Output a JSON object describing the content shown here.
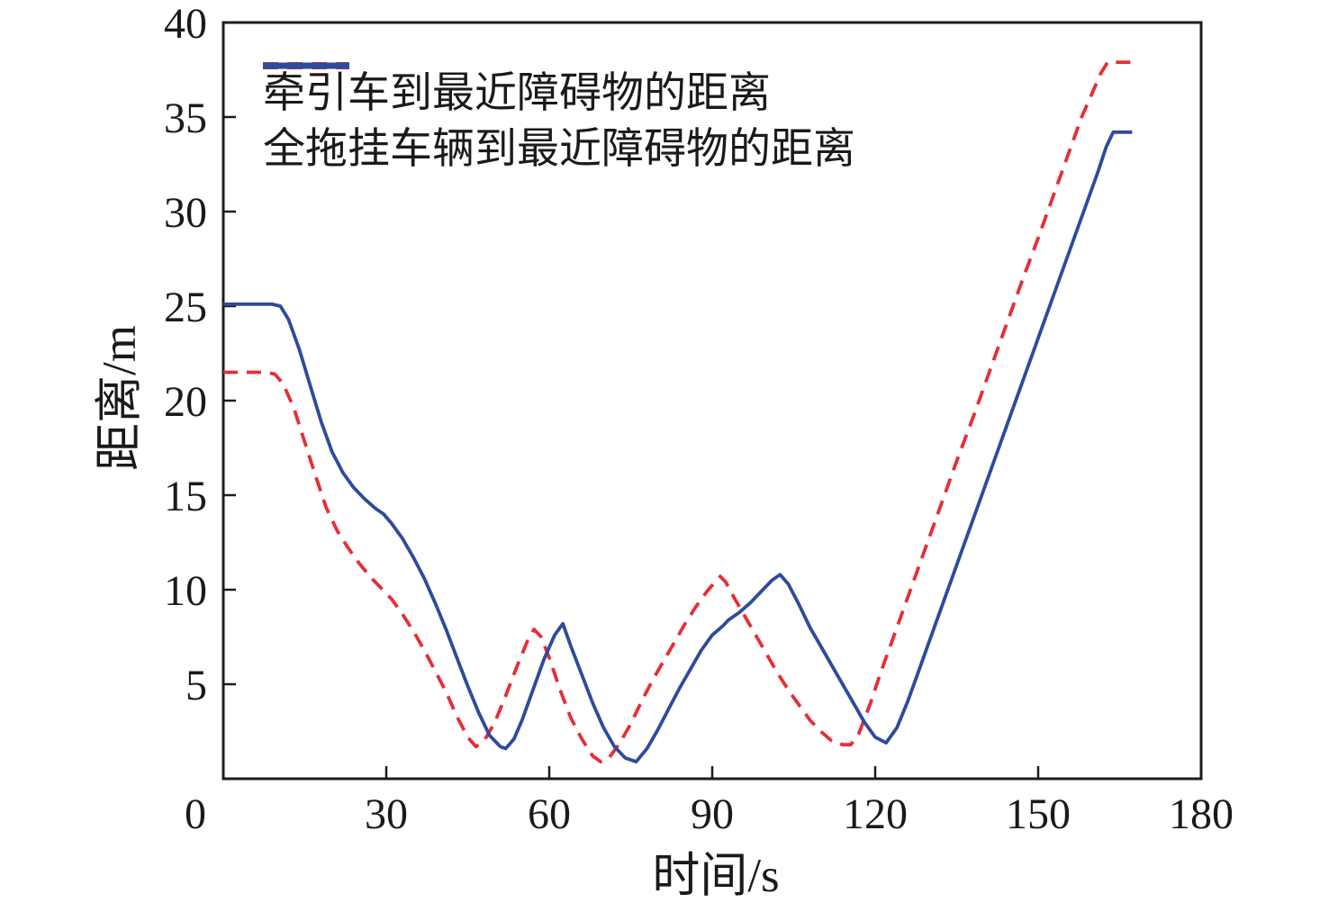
{
  "figure": {
    "background": "#ffffff",
    "axis_color": "#1c1c1c",
    "text_color": "#1a1a1a"
  },
  "chart_data": {
    "type": "line",
    "title": "",
    "xlabel": "时间/s",
    "ylabel": "距离/m",
    "xlim": [
      0,
      180
    ],
    "ylim": [
      0,
      40
    ],
    "xticks": [
      0,
      30,
      60,
      90,
      120,
      150,
      180
    ],
    "yticks": [
      5,
      10,
      15,
      20,
      25,
      30,
      35,
      40
    ],
    "origin_label": "0",
    "grid": false,
    "legend_position": "top-left",
    "legend_frame": false,
    "series": [
      {
        "name": "牵引车到最近障碍物的距离",
        "color": "#e62e35",
        "style": "dashed",
        "points": [
          [
            0,
            21.5
          ],
          [
            8,
            21.5
          ],
          [
            9.5,
            21.4
          ],
          [
            11,
            20.9
          ],
          [
            13,
            19.6
          ],
          [
            15,
            17.8
          ],
          [
            17,
            16.0
          ],
          [
            19,
            14.3
          ],
          [
            21,
            13.1
          ],
          [
            23,
            12.2
          ],
          [
            25,
            11.4
          ],
          [
            27,
            10.7
          ],
          [
            29,
            10.1
          ],
          [
            31,
            9.5
          ],
          [
            33,
            8.7
          ],
          [
            35,
            7.8
          ],
          [
            37,
            6.8
          ],
          [
            39,
            5.7
          ],
          [
            41,
            4.6
          ],
          [
            43,
            3.3
          ],
          [
            45,
            2.2
          ],
          [
            46.5,
            1.7
          ],
          [
            48,
            2.0
          ],
          [
            50,
            3.0
          ],
          [
            52,
            4.4
          ],
          [
            54,
            5.9
          ],
          [
            56,
            7.3
          ],
          [
            57.2,
            7.9
          ],
          [
            58.5,
            7.5
          ],
          [
            60,
            6.4
          ],
          [
            62,
            4.7
          ],
          [
            64,
            3.2
          ],
          [
            66,
            2.1
          ],
          [
            68,
            1.2
          ],
          [
            69.5,
            0.9
          ],
          [
            71,
            1.1
          ],
          [
            73,
            1.9
          ],
          [
            75,
            2.9
          ],
          [
            77,
            4.1
          ],
          [
            79,
            5.2
          ],
          [
            81,
            6.2
          ],
          [
            83,
            7.2
          ],
          [
            85,
            8.2
          ],
          [
            87,
            9.1
          ],
          [
            89,
            9.9
          ],
          [
            90.5,
            10.4
          ],
          [
            91.5,
            10.7
          ],
          [
            92.5,
            10.4
          ],
          [
            94,
            9.6
          ],
          [
            96,
            8.6
          ],
          [
            98,
            7.6
          ],
          [
            100,
            6.6
          ],
          [
            102,
            5.6
          ],
          [
            104,
            4.7
          ],
          [
            106,
            3.9
          ],
          [
            108,
            3.1
          ],
          [
            110,
            2.5
          ],
          [
            112,
            2.0
          ],
          [
            114,
            1.8
          ],
          [
            115.5,
            1.8
          ],
          [
            117,
            2.4
          ],
          [
            119,
            3.9
          ],
          [
            121,
            5.6
          ],
          [
            123,
            7.2
          ],
          [
            126,
            9.6
          ],
          [
            129,
            12.0
          ],
          [
            132,
            14.4
          ],
          [
            135,
            16.8
          ],
          [
            138,
            19.1
          ],
          [
            141,
            21.5
          ],
          [
            144,
            23.9
          ],
          [
            147,
            26.3
          ],
          [
            150,
            28.6
          ],
          [
            153,
            31.0
          ],
          [
            156,
            33.4
          ],
          [
            158,
            35.0
          ],
          [
            160,
            36.3
          ],
          [
            161.5,
            37.3
          ],
          [
            162.8,
            37.9
          ],
          [
            167.3,
            37.9
          ]
        ]
      },
      {
        "name": "全拖挂车辆到最近障碍物的距离",
        "color": "#2e4b9b",
        "style": "solid",
        "points": [
          [
            0,
            25.1
          ],
          [
            9,
            25.1
          ],
          [
            10.5,
            25.0
          ],
          [
            12,
            24.3
          ],
          [
            14,
            22.7
          ],
          [
            16,
            20.8
          ],
          [
            18,
            18.9
          ],
          [
            20,
            17.3
          ],
          [
            22,
            16.2
          ],
          [
            24,
            15.4
          ],
          [
            26,
            14.8
          ],
          [
            28,
            14.3
          ],
          [
            29.5,
            14.0
          ],
          [
            31,
            13.5
          ],
          [
            33,
            12.7
          ],
          [
            35,
            11.7
          ],
          [
            37,
            10.6
          ],
          [
            39,
            9.3
          ],
          [
            41,
            7.9
          ],
          [
            43,
            6.4
          ],
          [
            45,
            4.9
          ],
          [
            47,
            3.5
          ],
          [
            49,
            2.3
          ],
          [
            51,
            1.7
          ],
          [
            52,
            1.6
          ],
          [
            53.5,
            2.1
          ],
          [
            55,
            3.1
          ],
          [
            57,
            4.7
          ],
          [
            59,
            6.3
          ],
          [
            61,
            7.6
          ],
          [
            62.5,
            8.2
          ],
          [
            64,
            7.0
          ],
          [
            66,
            5.5
          ],
          [
            68,
            4.0
          ],
          [
            70,
            2.7
          ],
          [
            72,
            1.7
          ],
          [
            74,
            1.1
          ],
          [
            76,
            0.9
          ],
          [
            78,
            1.6
          ],
          [
            80,
            2.6
          ],
          [
            82,
            3.7
          ],
          [
            84,
            4.8
          ],
          [
            86,
            5.8
          ],
          [
            88,
            6.8
          ],
          [
            90,
            7.6
          ],
          [
            92,
            8.1
          ],
          [
            93,
            8.4
          ],
          [
            95,
            8.8
          ],
          [
            97,
            9.3
          ],
          [
            99,
            9.9
          ],
          [
            101,
            10.5
          ],
          [
            102.5,
            10.8
          ],
          [
            104,
            10.3
          ],
          [
            106,
            9.2
          ],
          [
            108,
            8.0
          ],
          [
            110,
            7.0
          ],
          [
            112,
            6.0
          ],
          [
            114,
            5.0
          ],
          [
            116,
            4.0
          ],
          [
            118,
            3.0
          ],
          [
            120,
            2.2
          ],
          [
            122,
            1.9
          ],
          [
            124,
            2.7
          ],
          [
            126,
            4.1
          ],
          [
            128,
            5.7
          ],
          [
            130,
            7.3
          ],
          [
            133,
            9.7
          ],
          [
            136,
            12.1
          ],
          [
            139,
            14.5
          ],
          [
            142,
            16.9
          ],
          [
            145,
            19.3
          ],
          [
            148,
            21.7
          ],
          [
            151,
            24.1
          ],
          [
            154,
            26.5
          ],
          [
            157,
            28.9
          ],
          [
            159,
            30.5
          ],
          [
            161,
            32.1
          ],
          [
            162.5,
            33.4
          ],
          [
            163.8,
            34.2
          ],
          [
            167.3,
            34.2
          ]
        ]
      }
    ]
  }
}
